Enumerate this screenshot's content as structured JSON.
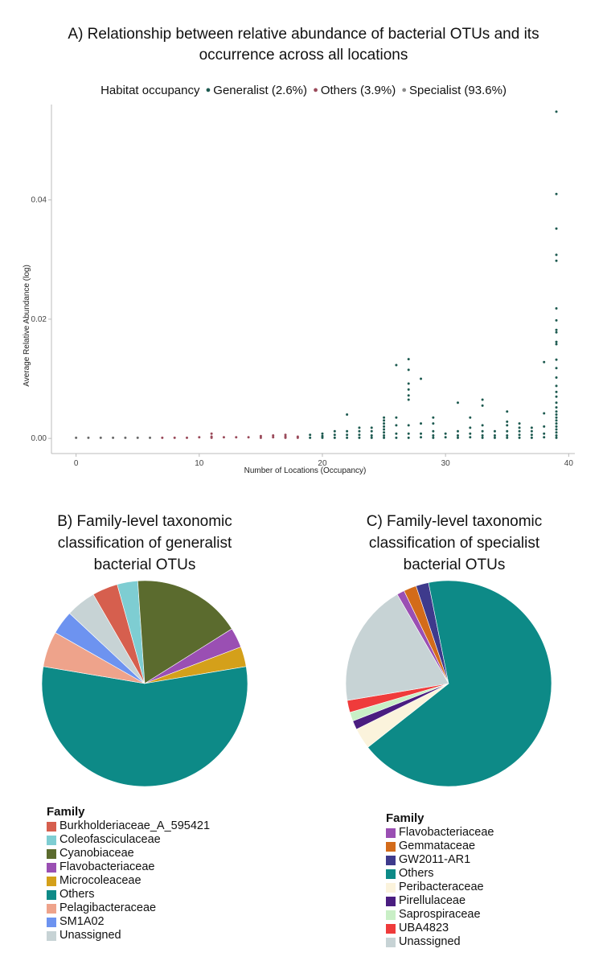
{
  "chart_data": [
    {
      "type": "scatter",
      "title": "A) Relationship between relative abundance of bacterial OTUs and its occurrence across all locations",
      "title_lines": [
        "A) Relationship between relative abundance of bacterial OTUs and its",
        "occurrence across all locations"
      ],
      "xlabel": "Number of Locations (Occupancy)",
      "ylabel": "Average Relative Abundance (log)",
      "xlim": [
        -2,
        40.5
      ],
      "ylim": [
        -0.002,
        0.056
      ],
      "xticks": [
        0,
        10,
        20,
        30,
        40
      ],
      "yticks": [
        "0.00",
        "0.02",
        "0.04"
      ],
      "ytick_values": [
        0.0,
        0.02,
        0.04
      ],
      "legend_title": "Habitat occupancy",
      "legend": [
        {
          "name": "Generalist (2.6%)",
          "color": "#1d5a50"
        },
        {
          "name": "Others (3.9%)",
          "color": "#9a4a5a"
        },
        {
          "name": "Specialist (93.6%)",
          "color": "#8a8a8a"
        }
      ],
      "series": [
        {
          "name": "Generalist",
          "color": "#1d5a50",
          "points": [
            [
              39,
              0.0548
            ],
            [
              39,
              0.041
            ],
            [
              39,
              0.0352
            ],
            [
              39,
              0.0308
            ],
            [
              39,
              0.0298
            ],
            [
              39,
              0.0218
            ],
            [
              39,
              0.0198
            ],
            [
              39,
              0.0182
            ],
            [
              39,
              0.0178
            ],
            [
              39,
              0.0162
            ],
            [
              39,
              0.0158
            ],
            [
              39,
              0.0132
            ],
            [
              39,
              0.0118
            ],
            [
              39,
              0.0102
            ],
            [
              39,
              0.0088
            ],
            [
              39,
              0.0078
            ],
            [
              39,
              0.007
            ],
            [
              39,
              0.006
            ],
            [
              39,
              0.0052
            ],
            [
              39,
              0.0045
            ],
            [
              39,
              0.004
            ],
            [
              39,
              0.0035
            ],
            [
              39,
              0.003
            ],
            [
              39,
              0.0025
            ],
            [
              39,
              0.002
            ],
            [
              39,
              0.0015
            ],
            [
              39,
              0.001
            ],
            [
              39,
              0.0005
            ],
            [
              39,
              0.0001
            ],
            [
              38,
              0.0128
            ],
            [
              38,
              0.0042
            ],
            [
              38,
              0.002
            ],
            [
              38,
              0.0008
            ],
            [
              38,
              0.0002
            ],
            [
              37,
              0.0018
            ],
            [
              37,
              0.0012
            ],
            [
              37,
              0.0006
            ],
            [
              37,
              0.0001
            ],
            [
              36,
              0.0025
            ],
            [
              36,
              0.0018
            ],
            [
              36,
              0.0012
            ],
            [
              36,
              0.0006
            ],
            [
              36,
              0.0001
            ],
            [
              35,
              0.0045
            ],
            [
              35,
              0.0028
            ],
            [
              35,
              0.0022
            ],
            [
              35,
              0.0012
            ],
            [
              35,
              0.0005
            ],
            [
              35,
              0.0001
            ],
            [
              34,
              0.0012
            ],
            [
              34,
              0.0005
            ],
            [
              34,
              0.0001
            ],
            [
              33,
              0.0065
            ],
            [
              33,
              0.0055
            ],
            [
              33,
              0.0022
            ],
            [
              33,
              0.0012
            ],
            [
              33,
              0.0005
            ],
            [
              33,
              0.0001
            ],
            [
              32,
              0.0035
            ],
            [
              32,
              0.0018
            ],
            [
              32,
              0.0008
            ],
            [
              32,
              0.0002
            ],
            [
              31,
              0.006
            ],
            [
              31,
              0.0012
            ],
            [
              31,
              0.0005
            ],
            [
              31,
              0.0001
            ],
            [
              30,
              0.0008
            ],
            [
              30,
              0.0002
            ],
            [
              29,
              0.0035
            ],
            [
              29,
              0.0025
            ],
            [
              29,
              0.0012
            ],
            [
              29,
              0.0005
            ],
            [
              29,
              0.0001
            ],
            [
              28,
              0.01
            ],
            [
              28,
              0.0025
            ],
            [
              28,
              0.0008
            ],
            [
              28,
              0.0002
            ],
            [
              27,
              0.0133
            ],
            [
              27,
              0.0115
            ],
            [
              27,
              0.0092
            ],
            [
              27,
              0.0082
            ],
            [
              27,
              0.0072
            ],
            [
              27,
              0.0065
            ],
            [
              27,
              0.0022
            ],
            [
              27,
              0.0008
            ],
            [
              27,
              0.0001
            ],
            [
              26,
              0.0123
            ],
            [
              26,
              0.0035
            ],
            [
              26,
              0.0022
            ],
            [
              26,
              0.0008
            ],
            [
              26,
              0.0001
            ],
            [
              25,
              0.0035
            ],
            [
              25,
              0.003
            ],
            [
              25,
              0.0025
            ],
            [
              25,
              0.002
            ],
            [
              25,
              0.0015
            ],
            [
              25,
              0.001
            ],
            [
              25,
              0.0005
            ],
            [
              25,
              0.0001
            ],
            [
              24,
              0.0018
            ],
            [
              24,
              0.0012
            ],
            [
              24,
              0.0005
            ],
            [
              24,
              0.0001
            ],
            [
              23,
              0.0018
            ],
            [
              23,
              0.0012
            ],
            [
              23,
              0.0006
            ],
            [
              23,
              0.0001
            ],
            [
              22,
              0.004
            ],
            [
              22,
              0.0012
            ],
            [
              22,
              0.0006
            ],
            [
              22,
              0.0001
            ],
            [
              21,
              0.0012
            ],
            [
              21,
              0.0006
            ],
            [
              21,
              0.0001
            ],
            [
              20,
              0.0008
            ],
            [
              20,
              0.0004
            ],
            [
              20,
              0.0001
            ],
            [
              19,
              0.0006
            ],
            [
              19,
              0.0001
            ]
          ]
        },
        {
          "name": "Others",
          "color": "#9a4a5a",
          "points": [
            [
              18,
              0.0003
            ],
            [
              18,
              0.0001
            ],
            [
              17,
              0.0006
            ],
            [
              17,
              0.0003
            ],
            [
              17,
              0.0001
            ],
            [
              16,
              0.0005
            ],
            [
              16,
              0.0002
            ],
            [
              15,
              0.0004
            ],
            [
              15,
              0.0001
            ],
            [
              14,
              0.0002
            ],
            [
              13,
              0.0002
            ],
            [
              12,
              0.0002
            ],
            [
              11,
              0.0008
            ],
            [
              11,
              0.0003
            ],
            [
              11,
              0.0001
            ],
            [
              10,
              0.0002
            ],
            [
              9,
              0.0001
            ],
            [
              8,
              0.0001
            ],
            [
              7,
              0.0001
            ]
          ]
        },
        {
          "name": "Specialist",
          "color": "#6a6a6a",
          "points": [
            [
              0,
              0.0001
            ],
            [
              1,
              0.0001
            ],
            [
              2,
              0.0001
            ],
            [
              3,
              0.0001
            ],
            [
              4,
              0.0001
            ],
            [
              5,
              0.0001
            ],
            [
              6,
              0.0001
            ]
          ]
        }
      ]
    },
    {
      "type": "pie",
      "title": "B) Family-level taxonomic classification of generalist bacterial OTUs",
      "title_lines": [
        "B) Family-level taxonomic",
        "classification of generalist",
        "bacterial OTUs"
      ],
      "legend_title": "Family",
      "slices": [
        {
          "label": "Burkholderiaceae_A_595421",
          "value": 4.1,
          "color": "#d65f4e"
        },
        {
          "label": "Coleofasciculaceae",
          "value": 3.3,
          "color": "#7ecdd2"
        },
        {
          "label": "Cyanobiaceae",
          "value": 17.5,
          "color": "#5b6b2e"
        },
        {
          "label": "Flavobacteriaceae",
          "value": 3.2,
          "color": "#9a4fb3"
        },
        {
          "label": "Microcoleaceae",
          "value": 3.2,
          "color": "#d4a01a"
        },
        {
          "label": "Others",
          "value": 56.4,
          "color": "#0d8a87"
        },
        {
          "label": "Pelagibacteraceae",
          "value": 5.7,
          "color": "#eea38b"
        },
        {
          "label": "SM1A02",
          "value": 3.8,
          "color": "#6d93f0"
        },
        {
          "label": "Unassigned",
          "value": 4.8,
          "color": "#c7d3d5"
        }
      ]
    },
    {
      "type": "pie",
      "title": "C) Family-level taxonomic classification of specialist bacterial OTUs",
      "title_lines": [
        "C) Family-level taxonomic",
        "classification of specialist",
        "bacterial OTUs"
      ],
      "legend_title": "Family",
      "slices": [
        {
          "label": "Flavobacteriaceae",
          "value": 1.2,
          "color": "#9a4fb3"
        },
        {
          "label": "Gemmataceae",
          "value": 2.0,
          "color": "#d36b1a"
        },
        {
          "label": "GW2011-AR1",
          "value": 2.0,
          "color": "#3e3a8c"
        },
        {
          "label": "Others",
          "value": 67.5,
          "color": "#0d8a87"
        },
        {
          "label": "Peribacteraceae",
          "value": 3.3,
          "color": "#fbf3dc"
        },
        {
          "label": "Pirellulaceae",
          "value": 1.4,
          "color": "#4a1d80"
        },
        {
          "label": "Saprospiraceae",
          "value": 1.4,
          "color": "#c9efc6"
        },
        {
          "label": "UBA4823",
          "value": 1.9,
          "color": "#ef3b3b"
        },
        {
          "label": "Unassigned",
          "value": 19.3,
          "color": "#c7d3d5"
        }
      ]
    }
  ]
}
